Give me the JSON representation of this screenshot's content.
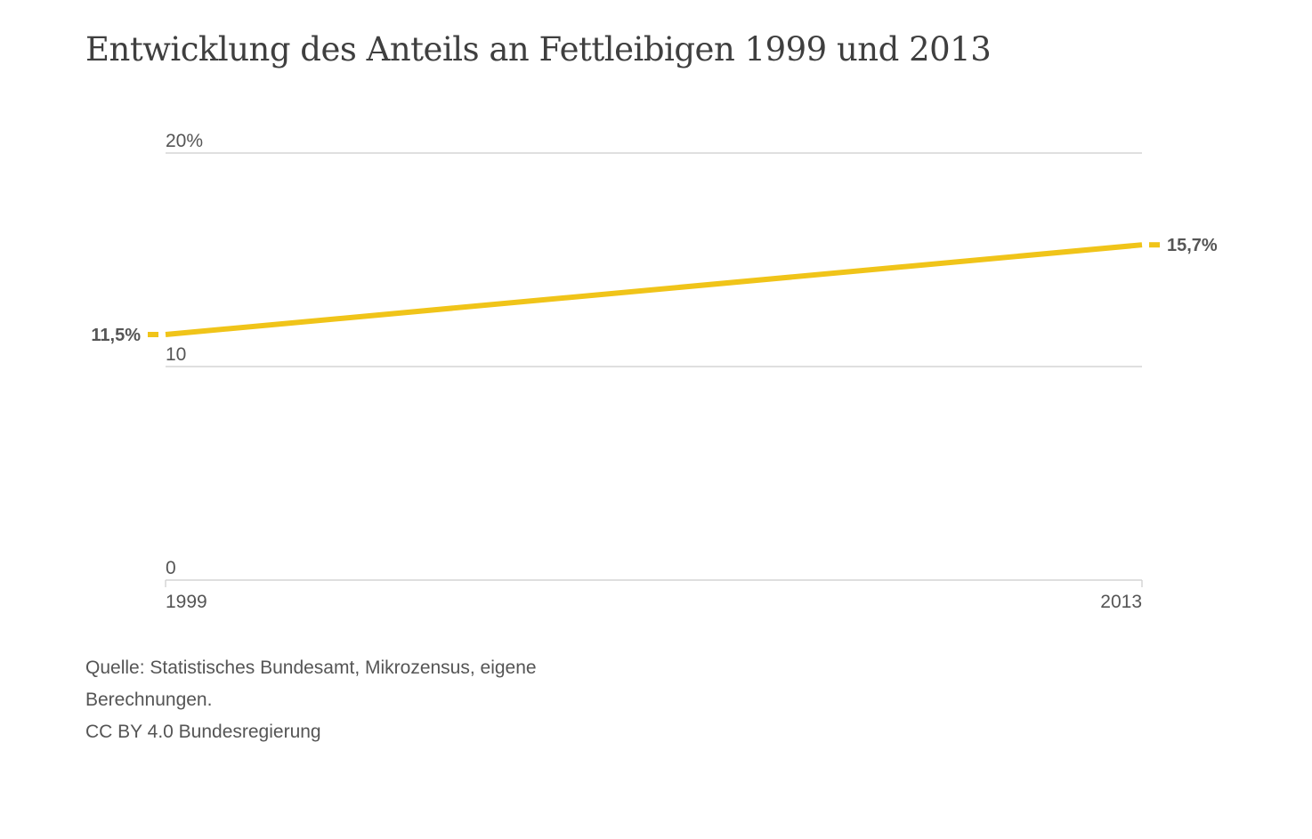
{
  "chart_data": {
    "type": "line",
    "title": "Entwicklung des Anteils an Fettleibigen 1999 und 2013",
    "x": [
      1999,
      2013
    ],
    "x_tick_labels": [
      "1999",
      "2013"
    ],
    "series": [
      {
        "values": [
          11.5,
          15.7
        ],
        "data_labels": [
          "11,5%",
          "15,7%"
        ],
        "color": "#f0c419"
      }
    ],
    "y_ticks": [
      0,
      10,
      20
    ],
    "y_tick_labels": [
      "0",
      "10",
      "20%"
    ],
    "ylim": [
      0,
      20
    ],
    "xlabel": "",
    "ylabel": "",
    "grid": true,
    "gridline_color": "#cccccc"
  },
  "source_lines": [
    "Quelle: Statistisches Bundesamt, Mikrozensus, eigene",
    "Berechnungen.",
    "CC BY 4.0 Bundesregierung"
  ]
}
